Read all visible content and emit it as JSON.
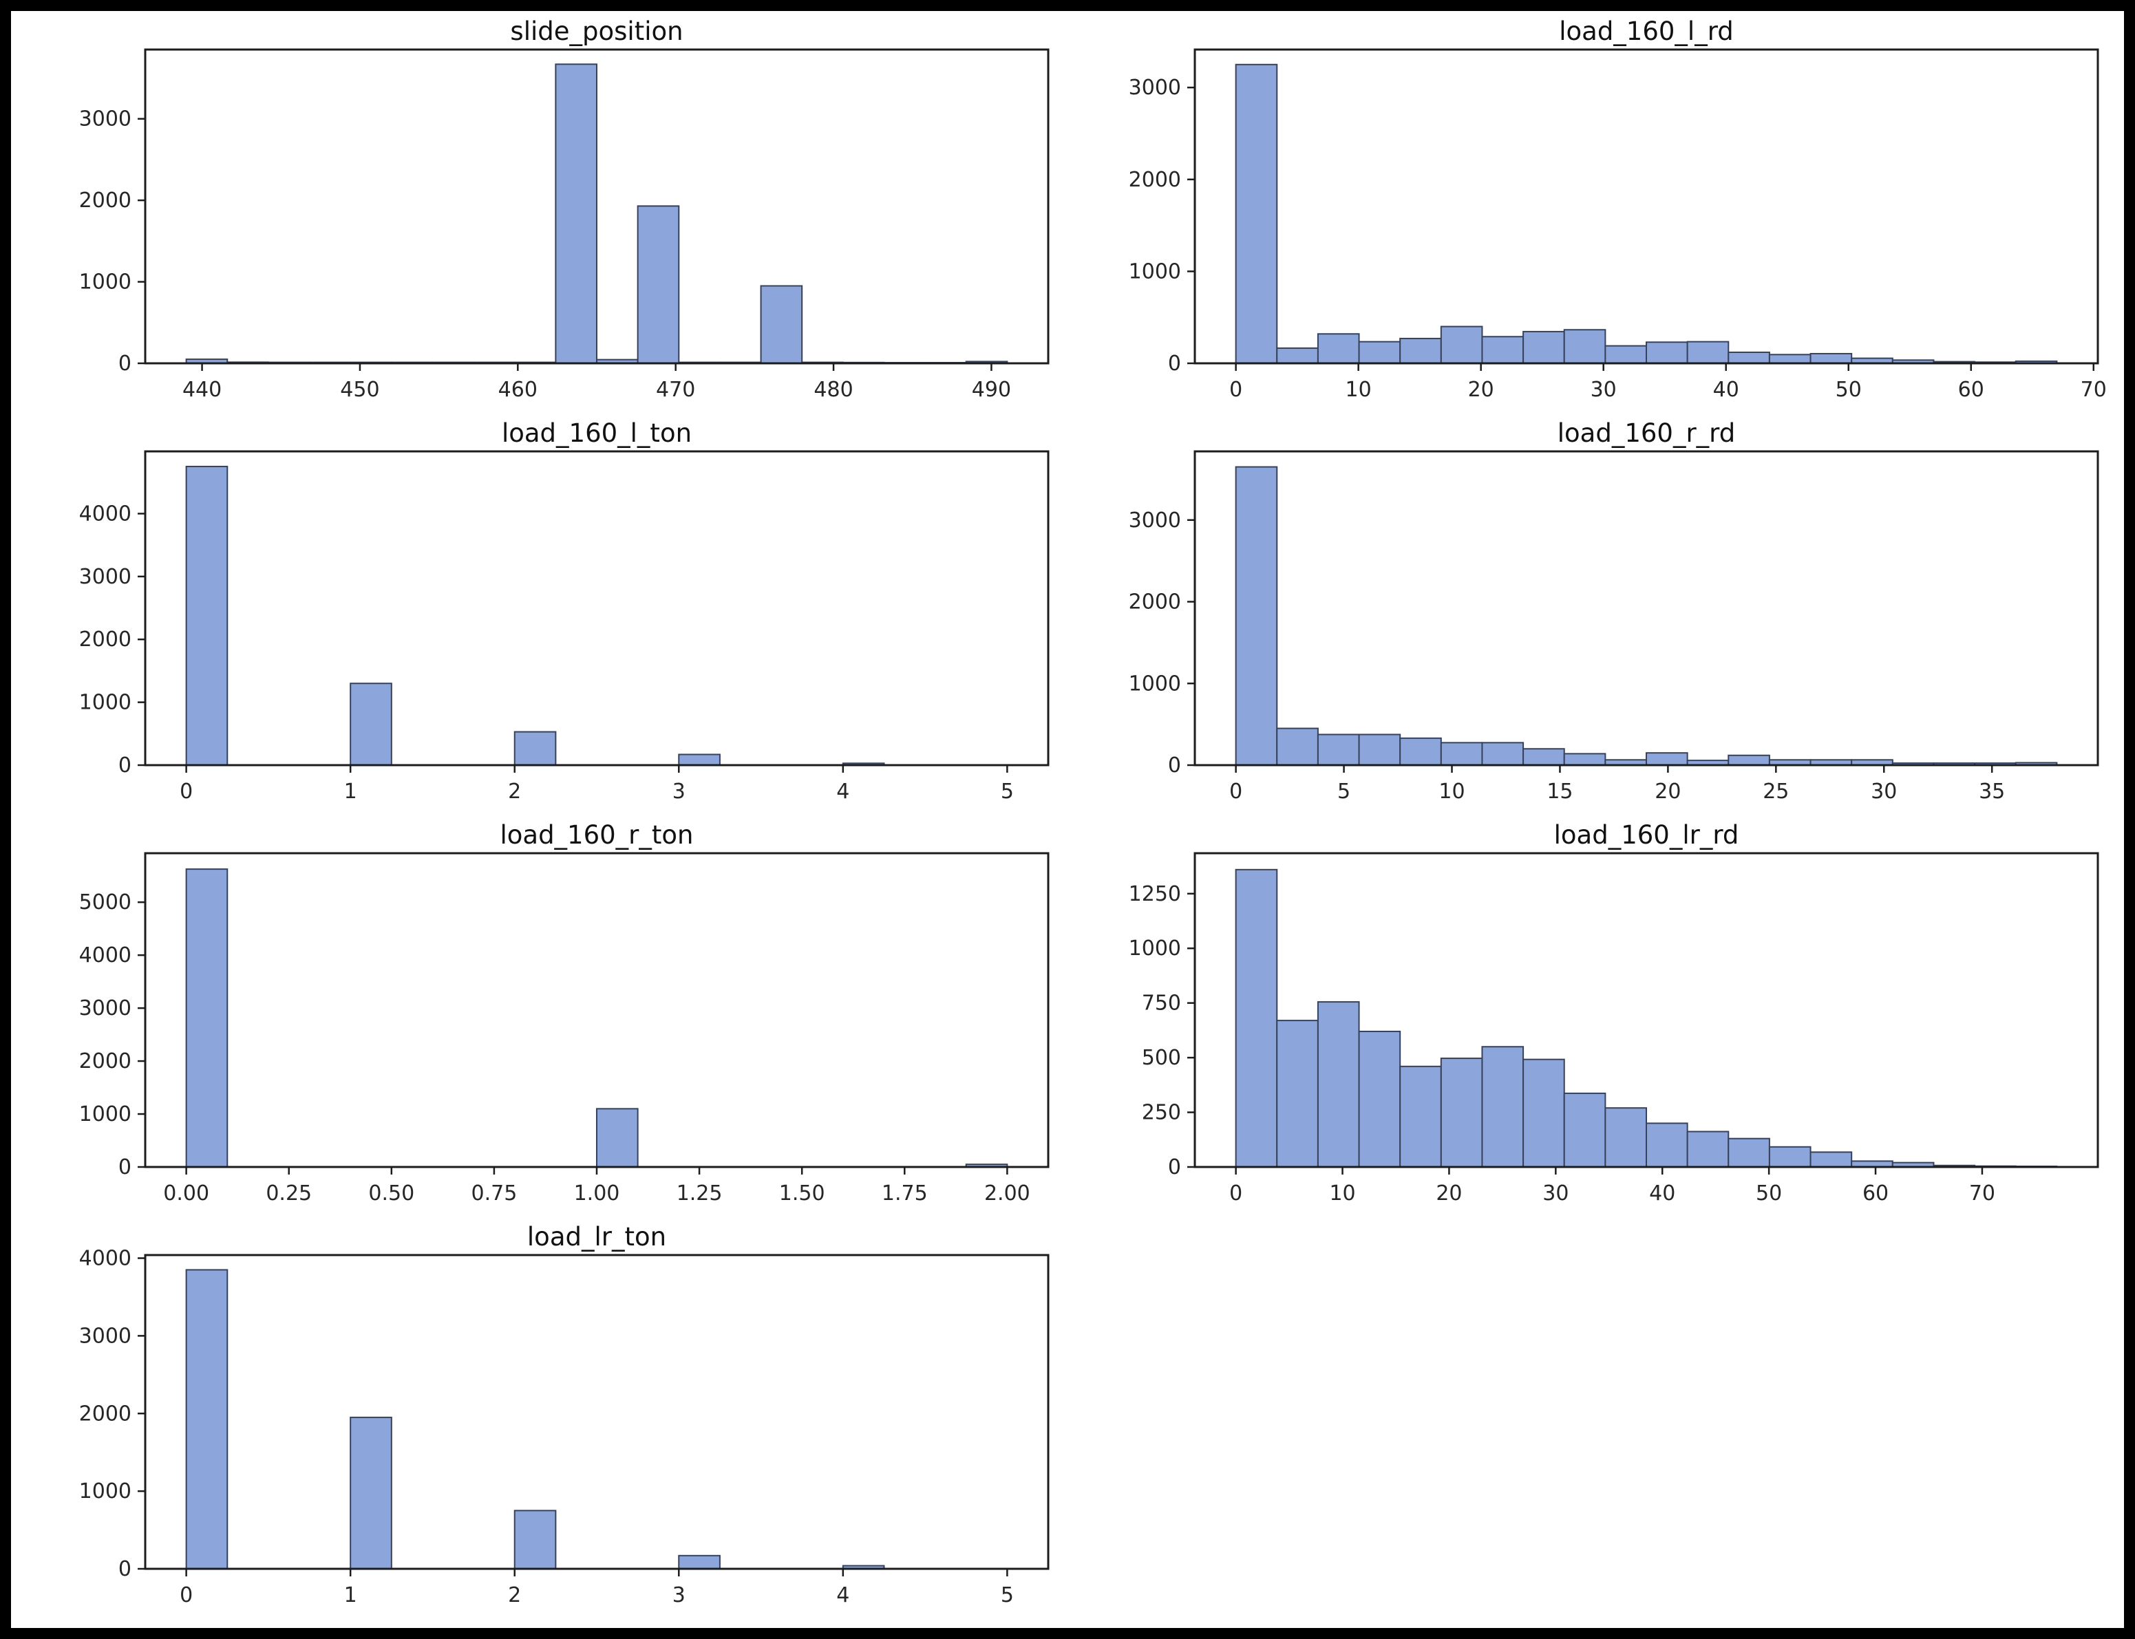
{
  "page": {
    "background": "#ffffff",
    "figure_border_color": "#000000",
    "layout": "4 rows x 2 columns, last cell empty"
  },
  "style": {
    "bar_fill": "#8ca6db",
    "bar_edge": "#37415a",
    "axis_color": "#1c1c1c",
    "tick_color": "#262626",
    "title_color": "#111111"
  },
  "chart_data": [
    {
      "type": "bar",
      "kind": "histogram",
      "title": "slide_position",
      "grid_on": false,
      "xlim": [
        436.4,
        493.6
      ],
      "ylim": [
        0,
        3850
      ],
      "bins": {
        "start": 439.0,
        "width": 2.6
      },
      "counts": [
        50,
        14,
        12,
        12,
        12,
        12,
        12,
        12,
        12,
        3670,
        45,
        1930,
        12,
        12,
        950,
        12,
        10,
        8,
        8,
        22
      ],
      "xtick_vals": [
        440,
        450,
        460,
        470,
        480,
        490
      ],
      "xtick_labels": [
        "440",
        "450",
        "460",
        "470",
        "480",
        "490"
      ],
      "ytick_vals": [
        0,
        1000,
        2000,
        3000
      ],
      "ytick_labels": [
        "0",
        "1000",
        "2000",
        "3000"
      ]
    },
    {
      "type": "bar",
      "kind": "histogram",
      "title": "load_160_l_rd",
      "grid_on": false,
      "xlim": [
        -3.35,
        70.35
      ],
      "ylim": [
        0,
        3413
      ],
      "bins": {
        "start": 0.0,
        "width": 3.35
      },
      "counts": [
        3250,
        165,
        320,
        235,
        270,
        400,
        290,
        345,
        365,
        190,
        230,
        235,
        120,
        95,
        105,
        55,
        35,
        18,
        13,
        23
      ],
      "xtick_vals": [
        0,
        10,
        20,
        30,
        40,
        50,
        60,
        70
      ],
      "xtick_labels": [
        "0",
        "10",
        "20",
        "30",
        "40",
        "50",
        "60",
        "70"
      ],
      "ytick_vals": [
        0,
        1000,
        2000,
        3000
      ],
      "ytick_labels": [
        "0",
        "1000",
        "2000",
        "3000"
      ]
    },
    {
      "type": "bar",
      "kind": "histogram",
      "title": "load_160_l_ton",
      "grid_on": false,
      "xlim": [
        -0.25,
        5.25
      ],
      "ylim": [
        0,
        4990
      ],
      "bins": {
        "start": 0.0,
        "width": 0.25
      },
      "counts": [
        4750,
        0,
        0,
        0,
        1300,
        0,
        0,
        0,
        530,
        0,
        0,
        0,
        170,
        0,
        0,
        0,
        30,
        0,
        0,
        3
      ],
      "xtick_vals": [
        0,
        1,
        2,
        3,
        4,
        5
      ],
      "xtick_labels": [
        "0",
        "1",
        "2",
        "3",
        "4",
        "5"
      ],
      "ytick_vals": [
        0,
        1000,
        2000,
        3000,
        4000
      ],
      "ytick_labels": [
        "0",
        "1000",
        "2000",
        "3000",
        "4000"
      ]
    },
    {
      "type": "bar",
      "kind": "histogram",
      "title": "load_160_r_rd",
      "grid_on": false,
      "xlim": [
        -1.9,
        39.9
      ],
      "ylim": [
        0,
        3840
      ],
      "bins": {
        "start": 0.0,
        "width": 1.9
      },
      "counts": [
        3650,
        450,
        375,
        375,
        330,
        275,
        275,
        200,
        140,
        65,
        150,
        58,
        120,
        65,
        65,
        65,
        25,
        25,
        25,
        30
      ],
      "xtick_vals": [
        0,
        5,
        10,
        15,
        20,
        25,
        30,
        35
      ],
      "xtick_labels": [
        "0",
        "5",
        "10",
        "15",
        "20",
        "25",
        "30",
        "35"
      ],
      "ytick_vals": [
        0,
        1000,
        2000,
        3000
      ],
      "ytick_labels": [
        "0",
        "1000",
        "2000",
        "3000"
      ]
    },
    {
      "type": "bar",
      "kind": "histogram",
      "title": "load_160_r_ton",
      "grid_on": false,
      "xlim": [
        -0.1,
        2.1
      ],
      "ylim": [
        0,
        5925
      ],
      "bins": {
        "start": 0.0,
        "width": 0.1
      },
      "counts": [
        5625,
        0,
        0,
        0,
        0,
        0,
        0,
        0,
        0,
        0,
        1100,
        0,
        0,
        0,
        0,
        0,
        0,
        0,
        0,
        50
      ],
      "xtick_vals": [
        0.0,
        0.25,
        0.5,
        0.75,
        1.0,
        1.25,
        1.5,
        1.75,
        2.0
      ],
      "xtick_labels": [
        "0.00",
        "0.25",
        "0.50",
        "0.75",
        "1.00",
        "1.25",
        "1.50",
        "1.75",
        "2.00"
      ],
      "ytick_vals": [
        0,
        1000,
        2000,
        3000,
        4000,
        5000
      ],
      "ytick_labels": [
        "0",
        "1000",
        "2000",
        "3000",
        "4000",
        "5000"
      ]
    },
    {
      "type": "bar",
      "kind": "histogram",
      "title": "load_160_lr_rd",
      "grid_on": false,
      "xlim": [
        -3.85,
        80.85
      ],
      "ylim": [
        0,
        1435
      ],
      "bins": {
        "start": 0.0,
        "width": 3.85
      },
      "counts": [
        1360,
        670,
        755,
        620,
        460,
        497,
        550,
        492,
        337,
        270,
        200,
        162,
        130,
        92,
        68,
        27,
        20,
        7,
        4,
        3
      ],
      "xtick_vals": [
        0,
        10,
        20,
        30,
        40,
        50,
        60,
        70
      ],
      "xtick_labels": [
        "0",
        "10",
        "20",
        "30",
        "40",
        "50",
        "60",
        "70"
      ],
      "ytick_vals": [
        0,
        250,
        500,
        750,
        1000,
        1250
      ],
      "ytick_labels": [
        "0",
        "250",
        "500",
        "750",
        "1000",
        "1250"
      ]
    },
    {
      "type": "bar",
      "kind": "histogram",
      "title": "load_lr_ton",
      "grid_on": false,
      "xlim": [
        -0.25,
        5.25
      ],
      "ylim": [
        0,
        4040
      ],
      "bins": {
        "start": 0.0,
        "width": 0.25
      },
      "counts": [
        3850,
        0,
        0,
        0,
        1950,
        0,
        0,
        0,
        750,
        0,
        0,
        0,
        170,
        0,
        0,
        0,
        40,
        0,
        0,
        0
      ],
      "xtick_vals": [
        0,
        1,
        2,
        3,
        4,
        5
      ],
      "xtick_labels": [
        "0",
        "1",
        "2",
        "3",
        "4",
        "5"
      ],
      "ytick_vals": [
        0,
        1000,
        2000,
        3000,
        4000
      ],
      "ytick_labels": [
        "0",
        "1000",
        "2000",
        "3000",
        "4000"
      ]
    }
  ]
}
